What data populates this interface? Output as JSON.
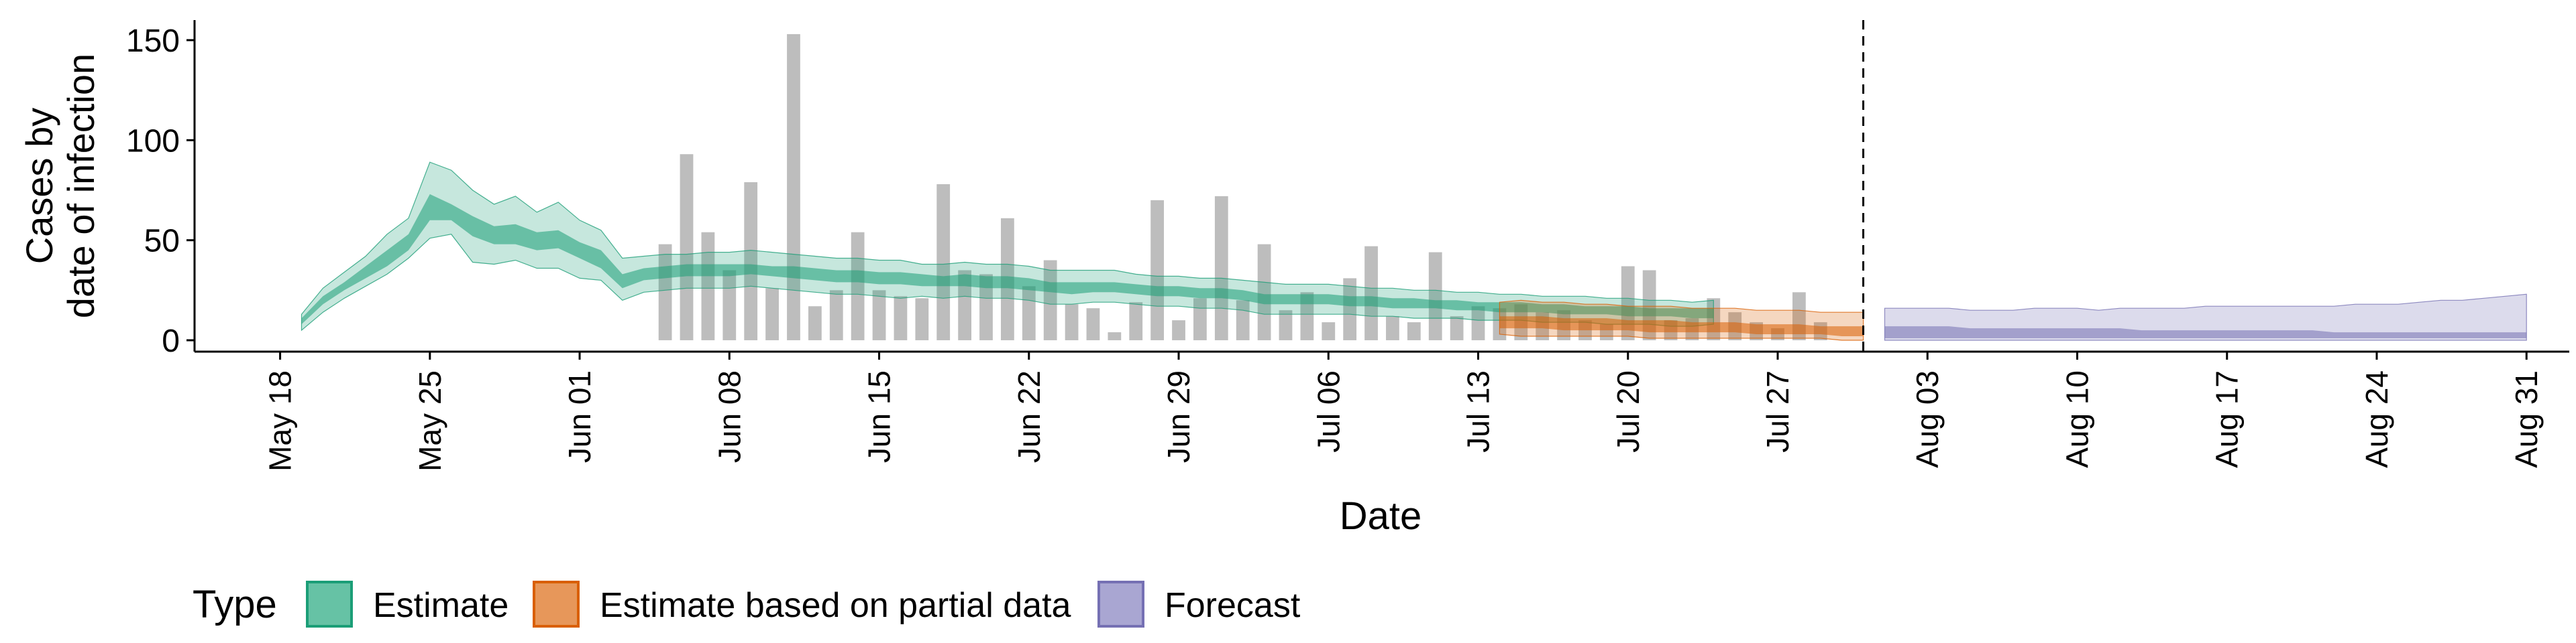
{
  "chart_data": {
    "type": "bar",
    "xlabel": "Date",
    "ylabel_lines": [
      "Cases by",
      "date of infection"
    ],
    "ylim": [
      0,
      160
    ],
    "yticks": [
      0,
      50,
      100,
      150
    ],
    "xlim": [
      "2020-05-14",
      "2020-09-02"
    ],
    "xticks": [
      {
        "date": "2020-05-18",
        "label": "May 18"
      },
      {
        "date": "2020-05-25",
        "label": "May 25"
      },
      {
        "date": "2020-06-01",
        "label": "Jun 01"
      },
      {
        "date": "2020-06-08",
        "label": "Jun 08"
      },
      {
        "date": "2020-06-15",
        "label": "Jun 15"
      },
      {
        "date": "2020-06-22",
        "label": "Jun 22"
      },
      {
        "date": "2020-06-29",
        "label": "Jun 29"
      },
      {
        "date": "2020-07-06",
        "label": "Jul 06"
      },
      {
        "date": "2020-07-13",
        "label": "Jul 13"
      },
      {
        "date": "2020-07-20",
        "label": "Jul 20"
      },
      {
        "date": "2020-07-27",
        "label": "Jul 27"
      },
      {
        "date": "2020-08-03",
        "label": "Aug 03"
      },
      {
        "date": "2020-08-10",
        "label": "Aug 10"
      },
      {
        "date": "2020-08-17",
        "label": "Aug 17"
      },
      {
        "date": "2020-08-24",
        "label": "Aug 24"
      },
      {
        "date": "2020-08-31",
        "label": "Aug 31"
      }
    ],
    "vline_date": "2020-07-31",
    "grid": false,
    "legend": {
      "position": "bottom-left",
      "title": "Type",
      "items": [
        {
          "label": "Estimate",
          "fill": "#66c2a5",
          "stroke": "#1b9e77"
        },
        {
          "label": "Estimate based on partial data",
          "fill": "#e7975a",
          "stroke": "#d95f02"
        },
        {
          "label": "Forecast",
          "fill": "#a9a6d2",
          "stroke": "#7570b3"
        }
      ]
    },
    "colors": {
      "bars": "#bdbdbd",
      "estimate_outer": "#1b9e77",
      "estimate_inner": "#1b9e77",
      "partial_outer": "#d95f02",
      "partial_inner": "#d95f02",
      "forecast_outer": "#7570b3",
      "forecast_inner": "#7570b3"
    },
    "reported_cases": {
      "start_date": "2020-06-05",
      "values": [
        48,
        93,
        54,
        35,
        79,
        26,
        153,
        17,
        25,
        54,
        25,
        22,
        21,
        78,
        35,
        33,
        61,
        27,
        40,
        18,
        16,
        4,
        19,
        70,
        10,
        21,
        72,
        20,
        48,
        15,
        24,
        9,
        31,
        47,
        12,
        9,
        44,
        12,
        17,
        16,
        18,
        14,
        15,
        10,
        8,
        37,
        35,
        10,
        11,
        21,
        14,
        9,
        6,
        24,
        9
      ]
    },
    "estimate": {
      "start_date": "2020-05-19",
      "lower90": [
        5,
        14,
        21,
        27,
        33,
        41,
        51,
        53,
        39,
        38,
        40,
        36,
        36,
        31,
        30,
        20,
        24,
        25,
        26,
        26,
        26,
        27,
        26,
        25,
        24,
        23,
        23,
        22,
        21,
        22,
        21,
        22,
        21,
        21,
        20,
        18,
        18,
        19,
        19,
        18,
        17,
        17,
        16,
        16,
        15,
        13,
        13,
        13,
        13,
        13,
        12,
        12,
        11,
        11,
        11,
        10,
        10,
        10,
        9,
        9,
        9,
        8,
        8,
        8,
        7,
        7,
        8
      ],
      "upper90": [
        13,
        26,
        34,
        42,
        53,
        61,
        89,
        85,
        75,
        68,
        72,
        64,
        69,
        60,
        55,
        41,
        42,
        43,
        43,
        44,
        44,
        45,
        44,
        43,
        42,
        41,
        41,
        40,
        40,
        38,
        38,
        39,
        38,
        38,
        37,
        35,
        35,
        35,
        35,
        33,
        32,
        32,
        31,
        31,
        30,
        29,
        28,
        28,
        28,
        27,
        26,
        26,
        25,
        25,
        24,
        24,
        23,
        23,
        22,
        22,
        22,
        21,
        21,
        20,
        20,
        19,
        20
      ],
      "lower50": [
        8,
        18,
        25,
        31,
        37,
        45,
        60,
        60,
        52,
        48,
        48,
        45,
        46,
        41,
        36,
        26,
        30,
        31,
        32,
        32,
        32,
        33,
        32,
        31,
        30,
        29,
        29,
        28,
        28,
        27,
        27,
        27,
        26,
        26,
        25,
        24,
        23,
        24,
        24,
        23,
        22,
        22,
        21,
        21,
        20,
        18,
        18,
        18,
        18,
        17,
        17,
        16,
        16,
        16,
        15,
        15,
        14,
        14,
        14,
        13,
        13,
        13,
        12,
        12,
        12,
        11,
        11
      ],
      "upper50": [
        11,
        22,
        29,
        37,
        45,
        53,
        73,
        68,
        62,
        57,
        58,
        54,
        55,
        49,
        45,
        33,
        36,
        37,
        38,
        38,
        38,
        38,
        37,
        37,
        36,
        35,
        35,
        34,
        34,
        33,
        32,
        33,
        32,
        32,
        31,
        29,
        29,
        29,
        29,
        28,
        27,
        27,
        26,
        26,
        25,
        23,
        23,
        23,
        23,
        22,
        22,
        21,
        21,
        20,
        20,
        19,
        19,
        19,
        18,
        18,
        17,
        17,
        17,
        16,
        16,
        16,
        16
      ]
    },
    "partial": {
      "start_date": "2020-07-14",
      "lower90": [
        3,
        2,
        2,
        2,
        2,
        2,
        2,
        1,
        1,
        1,
        1,
        1,
        1,
        1,
        1,
        1,
        0,
        0
      ],
      "upper90": [
        19,
        20,
        19,
        19,
        18,
        18,
        17,
        17,
        17,
        16,
        16,
        16,
        15,
        15,
        15,
        14,
        14,
        14
      ],
      "lower50": [
        6,
        6,
        6,
        5,
        5,
        5,
        5,
        4,
        4,
        4,
        4,
        4,
        3,
        3,
        3,
        3,
        2,
        2
      ],
      "upper50": [
        12,
        12,
        12,
        11,
        11,
        11,
        10,
        10,
        10,
        9,
        9,
        9,
        8,
        8,
        8,
        7,
        7,
        7
      ]
    },
    "forecast": {
      "start_date": "2020-08-01",
      "lower90": [
        0,
        0,
        0,
        0,
        0,
        0,
        0,
        0,
        0,
        0,
        0,
        0,
        0,
        0,
        0,
        0,
        0,
        0,
        0,
        0,
        0,
        0,
        0,
        0,
        0,
        0,
        0,
        0,
        0,
        0,
        0
      ],
      "upper90": [
        16,
        16,
        16,
        16,
        15,
        15,
        15,
        16,
        16,
        16,
        15,
        16,
        16,
        16,
        16,
        17,
        17,
        17,
        17,
        17,
        17,
        17,
        18,
        18,
        18,
        19,
        20,
        20,
        21,
        22,
        23
      ],
      "lower50": [
        1,
        1,
        1,
        1,
        1,
        1,
        1,
        1,
        1,
        1,
        1,
        1,
        1,
        1,
        1,
        1,
        1,
        1,
        1,
        1,
        1,
        1,
        1,
        1,
        1,
        1,
        1,
        1,
        1,
        1,
        1
      ],
      "upper50": [
        7,
        7,
        7,
        7,
        6,
        6,
        6,
        6,
        6,
        6,
        6,
        6,
        5,
        5,
        5,
        5,
        5,
        5,
        5,
        5,
        5,
        4,
        4,
        4,
        4,
        4,
        4,
        4,
        4,
        4,
        4
      ]
    }
  }
}
